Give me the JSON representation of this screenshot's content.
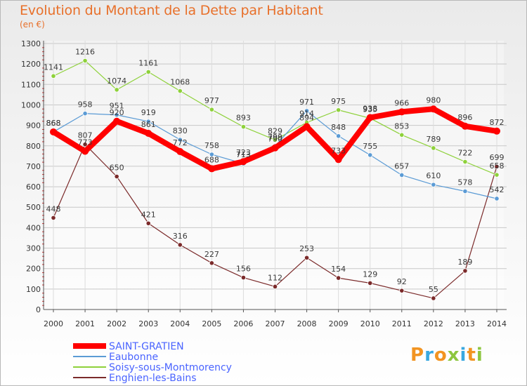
{
  "header": {
    "title": "Evolution du Montant de la Dette par Habitant",
    "subtitle": "(en €)"
  },
  "brand": {
    "letters": [
      "P",
      "r",
      "o",
      "x",
      "i",
      "t",
      "i"
    ],
    "colors": [
      "#f29421",
      "#39a8e0",
      "#f29421",
      "#8dc63f",
      "#39a8e0",
      "#f29421",
      "#8dc63f"
    ]
  },
  "chart_data": {
    "type": "line",
    "x": [
      "2000",
      "2001",
      "2002",
      "2003",
      "2004",
      "2005",
      "2006",
      "2007",
      "2008",
      "2009",
      "2010",
      "2011",
      "2012",
      "2013",
      "2014"
    ],
    "ylim": [
      0,
      1300
    ],
    "yticks": [
      "0",
      "100",
      "200",
      "300",
      "400",
      "500",
      "600",
      "700",
      "800",
      "900",
      "1000",
      "1100",
      "1200",
      "1300"
    ],
    "grid": true,
    "legend_position": "bottom-left",
    "series": [
      {
        "name": "SAINT-GRATIEN",
        "color": "#ff0000",
        "values": [
          868,
          773,
          920,
          861,
          772,
          688,
          723,
          790,
          894,
          733,
          938,
          966,
          980,
          896,
          872
        ],
        "labels": [
          "868",
          "773",
          "920",
          "861",
          "772",
          "688",
          "723",
          "790",
          "894",
          "733",
          "938",
          "966",
          "980",
          "896",
          "872"
        ]
      },
      {
        "name": "Eaubonne",
        "color": "#5b9bd5",
        "values": [
          868,
          958,
          951,
          919,
          830,
          758,
          713,
          799,
          971,
          848,
          755,
          657,
          610,
          578,
          542
        ],
        "labels": [
          "868",
          "958",
          "951",
          "919",
          "830",
          "758",
          "713",
          "799",
          "971",
          "848",
          "755",
          "657",
          "610",
          "578",
          "542"
        ]
      },
      {
        "name": "Soisy-sous-Montmorency",
        "color": "#8ed13a",
        "values": [
          1141,
          1216,
          1074,
          1161,
          1068,
          977,
          893,
          829,
          914,
          975,
          935,
          853,
          789,
          722,
          658
        ],
        "labels": [
          "1141",
          "1216",
          "1074",
          "1161",
          "1068",
          "977",
          "893",
          "829",
          "914",
          "975",
          "935",
          "853",
          "789",
          "722",
          "658"
        ]
      },
      {
        "name": "Enghien-les-Bains",
        "color": "#7b2a2a",
        "values": [
          448,
          807,
          650,
          421,
          316,
          227,
          156,
          112,
          253,
          154,
          129,
          92,
          55,
          189,
          699
        ],
        "labels": [
          "448",
          "807",
          "650",
          "421",
          "316",
          "227",
          "156",
          "112",
          "253",
          "154",
          "129",
          "92",
          "55",
          "189",
          "699"
        ]
      }
    ]
  }
}
